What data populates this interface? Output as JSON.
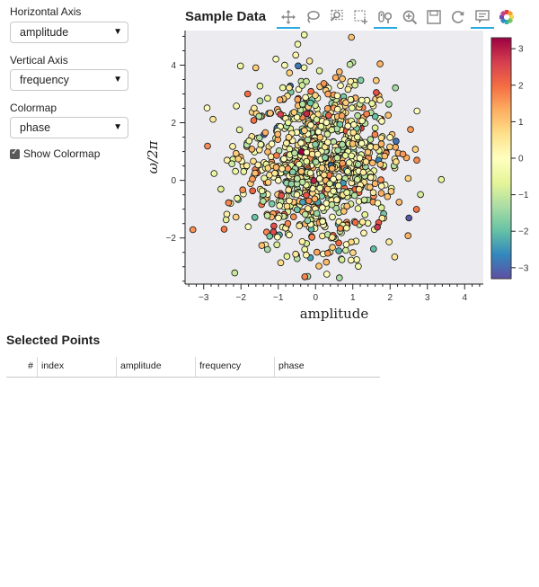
{
  "controls": {
    "horizontal_axis": {
      "label": "Horizontal Axis",
      "value": "amplitude"
    },
    "vertical_axis": {
      "label": "Vertical Axis",
      "value": "frequency"
    },
    "colormap": {
      "label": "Colormap",
      "value": "phase"
    },
    "show_colormap": {
      "label": "Show Colormap",
      "checked": true
    }
  },
  "toolbar": {
    "tools": [
      "pan",
      "lasso-select",
      "box-zoom",
      "box-select",
      "wheel-zoom",
      "zoom-in",
      "save",
      "reset",
      "hover",
      "bokeh-logo"
    ],
    "active_tools": [
      "pan",
      "wheel-zoom",
      "hover"
    ]
  },
  "chart_data": {
    "type": "scatter",
    "title": "Sample Data",
    "xlabel": "amplitude",
    "ylabel": "ω/2π",
    "xlim": [
      -3.5,
      4.5
    ],
    "ylim": [
      -3.6,
      5.2
    ],
    "xticks": [
      "−3",
      "−2",
      "−1",
      "0",
      "1",
      "2",
      "3",
      "4"
    ],
    "yticks": [
      "−2",
      "0",
      "2",
      "4"
    ],
    "point_count_approx": 1000,
    "distribution": {
      "x_mean": 0.1,
      "x_std": 1.0,
      "y_mean": 0.6,
      "y_std": 1.5
    },
    "color_by": "phase",
    "colorbar": {
      "range": [
        -3.3,
        3.3
      ],
      "ticks": [
        "3",
        "2",
        "1",
        "0",
        "−1",
        "−2",
        "−3"
      ]
    },
    "colors": {
      "background": "#ecebef",
      "marker_edge": "#111111"
    }
  },
  "table": {
    "title": "Selected Points",
    "columns": [
      "#",
      "index",
      "amplitude",
      "frequency",
      "phase"
    ],
    "rows": []
  }
}
